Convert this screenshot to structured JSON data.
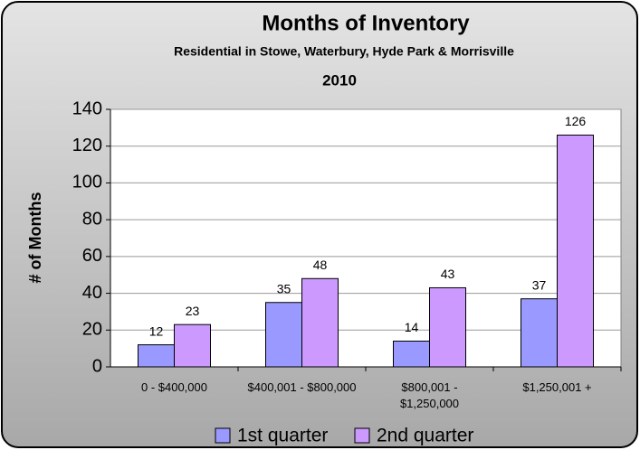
{
  "chart_data": {
    "type": "bar",
    "title": "Months of Inventory",
    "subtitle": "Residential  in Stowe, Waterbury, Hyde Park & Morrisville",
    "subtitle2": "2010",
    "y_label": "# of Months",
    "categories": [
      "0 - $400,000",
      "$400,001 - $800,000",
      "$800,001 - $1,250,000",
      "$1,250,001 +"
    ],
    "series": [
      {
        "name": "1st quarter",
        "color": "#9999ff",
        "values": [
          12,
          35,
          14,
          37
        ]
      },
      {
        "name": "2nd quarter",
        "color": "#cc99ff",
        "values": [
          23,
          48,
          43,
          126
        ]
      }
    ],
    "ylim": [
      0,
      140
    ],
    "yticks": [
      0,
      20,
      40,
      60,
      80,
      100,
      120,
      140
    ],
    "grid": true,
    "legend": "bottom"
  }
}
